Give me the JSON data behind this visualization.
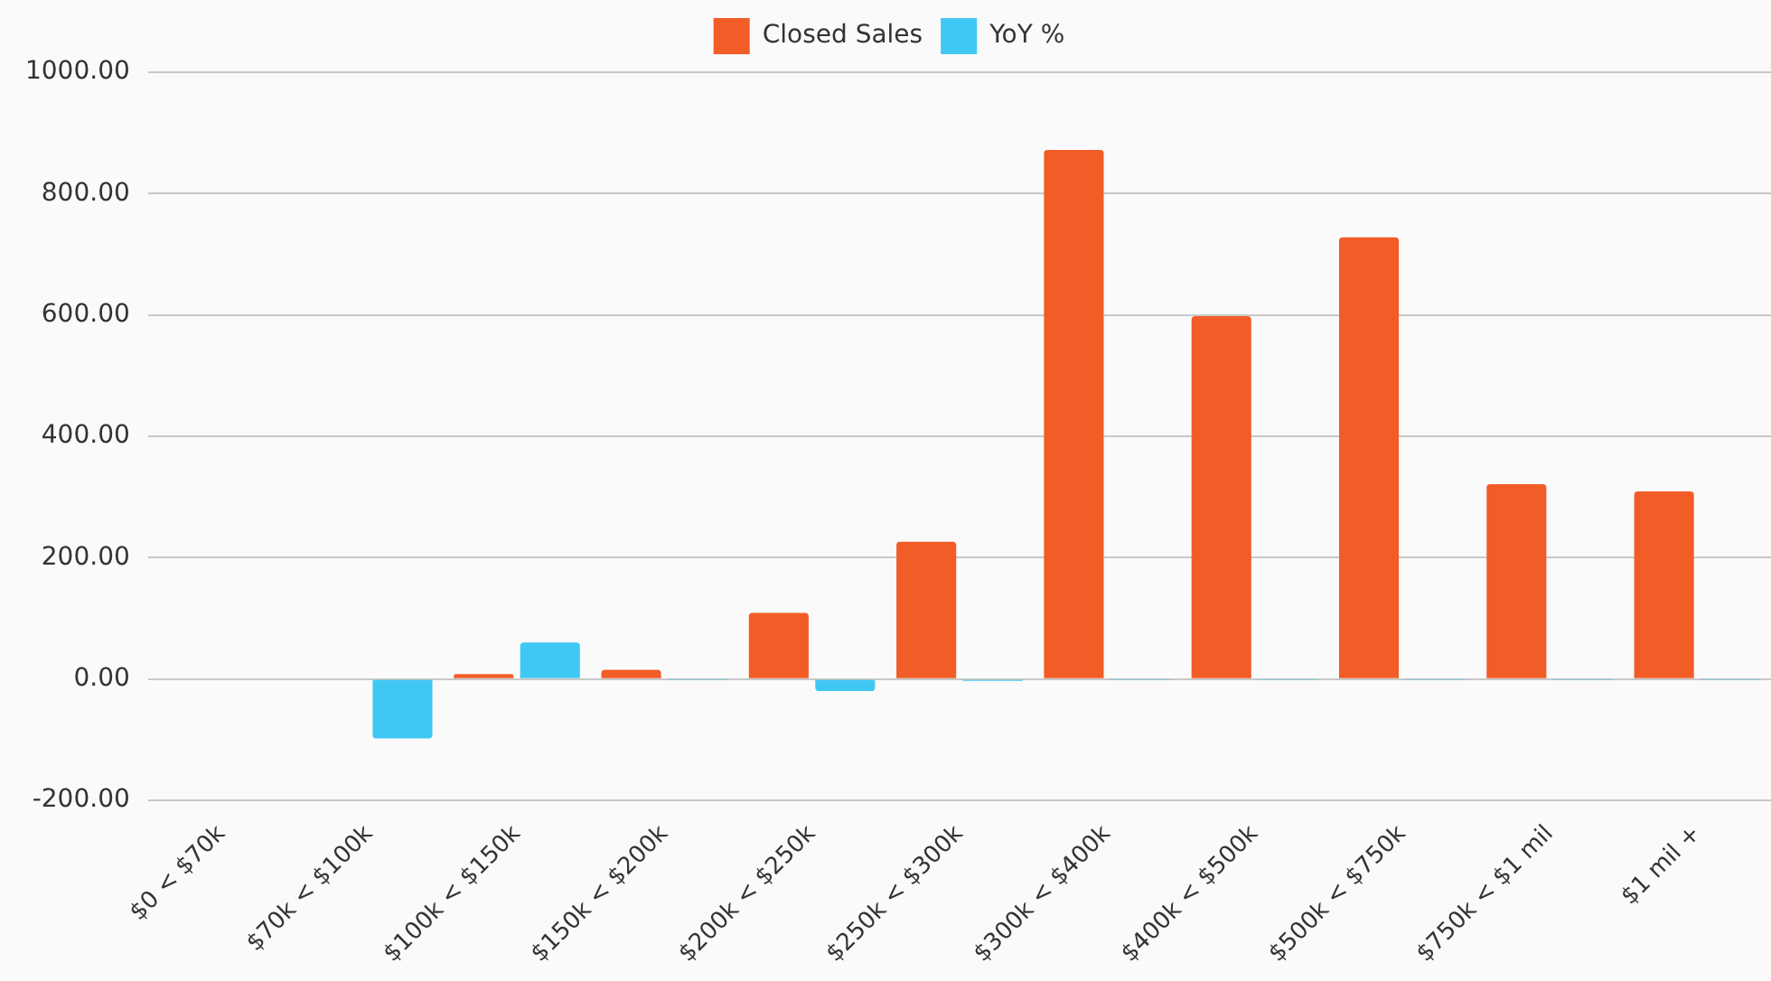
{
  "chart_data": {
    "type": "bar",
    "categories": [
      "$0 < $70k",
      "$70k < $100k",
      "$100k < $150k",
      "$150k < $200k",
      "$200k < $250k",
      "$250k < $300k",
      "$300k < $400k",
      "$400k < $500k",
      "$500k < $750k",
      "$750k < $1 mil",
      "$1 mil +"
    ],
    "series": [
      {
        "name": "Closed Sales",
        "color": "#f25c27",
        "values": [
          0,
          0,
          8,
          15,
          109,
          226,
          872,
          598,
          728,
          321,
          309
        ]
      },
      {
        "name": "YoY %",
        "color": "#40c8f4",
        "values": [
          0,
          -98,
          60,
          -1,
          -20,
          -3,
          -1,
          -1,
          -1,
          -1,
          -1
        ]
      }
    ],
    "ylim": [
      -200,
      1000
    ],
    "yticks": [
      {
        "value": -200,
        "label": "-200.00"
      },
      {
        "value": 0,
        "label": "0.00"
      },
      {
        "value": 200,
        "label": "200.00"
      },
      {
        "value": 400,
        "label": "400.00"
      },
      {
        "value": 600,
        "label": "600.00"
      },
      {
        "value": 800,
        "label": "800.00"
      },
      {
        "value": 1000,
        "label": "1000.00"
      }
    ],
    "grid": "y",
    "legend": "top"
  }
}
